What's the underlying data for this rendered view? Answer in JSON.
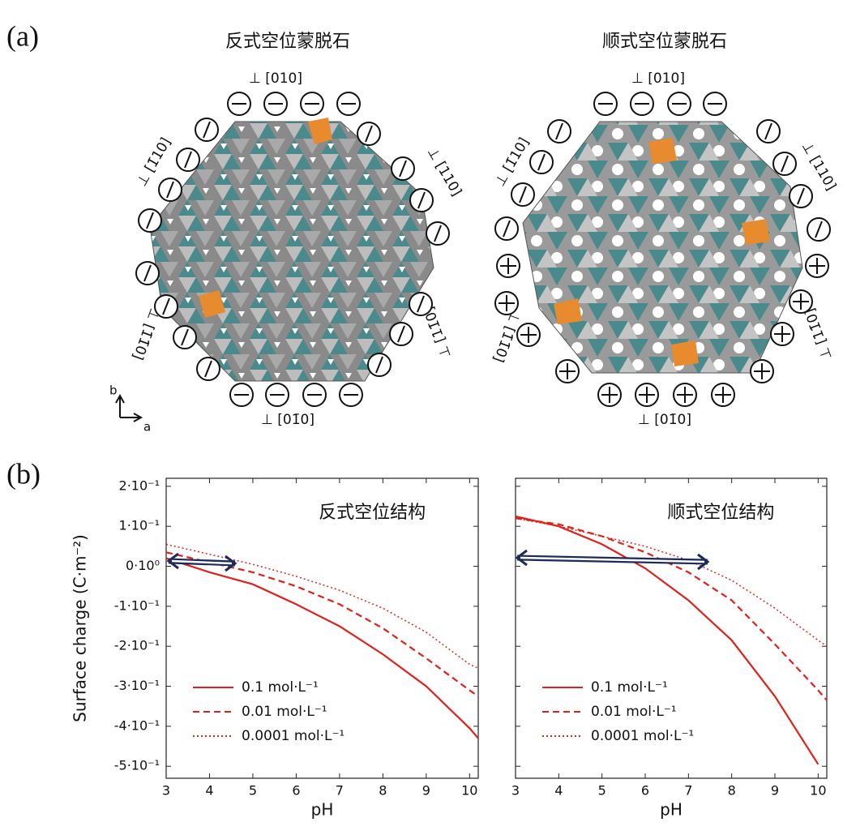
{
  "panel_a": {
    "label": "(a)",
    "titles": [
      "反式空位蒙脱石",
      "顺式空位蒙脱石"
    ],
    "left_directions": [
      "⊥ [010]",
      "⊥ [1̄10]",
      "⊥ [110]",
      "⊥ [1̄1̄0]",
      "⊥ [11̄0]",
      "⊥ [01̄0]"
    ],
    "right_directions": [
      "⊥ [010]",
      "⊥ [1̄10]",
      "⊥ [110]",
      "⊥ [1̄1̄0]",
      "⊥ [11̄0]",
      "⊥ [01̄0]"
    ],
    "axis_b": "b",
    "axis_a": "a"
  },
  "panel_b": {
    "label": "(b)"
  },
  "chart_data": [
    {
      "type": "line",
      "annotation": "反式空位结构",
      "xlabel": "pH",
      "ylabel": "Surface charge (C·m⁻²)",
      "x": [
        3,
        4,
        5,
        6,
        7,
        8,
        9,
        10,
        10.2
      ],
      "series": [
        {
          "name": "0.1 mol·L⁻¹",
          "color": "#e0201b",
          "linestyle": "solid",
          "values": [
            0.02,
            -0.015,
            -0.045,
            -0.095,
            -0.15,
            -0.22,
            -0.3,
            -0.405,
            -0.43
          ]
        },
        {
          "name": "0.01 mol·L⁻¹",
          "color": "#e0201b",
          "linestyle": "dashed",
          "values": [
            0.035,
            0.01,
            -0.015,
            -0.05,
            -0.095,
            -0.155,
            -0.23,
            -0.31,
            -0.325
          ]
        },
        {
          "name": "0.0001 mol·L⁻¹",
          "color": "#e0201b",
          "linestyle": "dotted",
          "values": [
            0.055,
            0.03,
            0.005,
            -0.025,
            -0.06,
            -0.105,
            -0.165,
            -0.245,
            -0.255
          ]
        }
      ],
      "xlim": [
        3,
        10.2
      ],
      "xticks": [
        3,
        4,
        5,
        6,
        7,
        8,
        9,
        10
      ],
      "ylim": [
        -0.53,
        0.22
      ],
      "yticks": [
        {
          "value": 0.2,
          "label": "2·10⁻¹"
        },
        {
          "value": 0.1,
          "label": "1·10⁻¹"
        },
        {
          "value": 0,
          "label": "0·10⁰"
        },
        {
          "value": -0.1,
          "label": "-1·10⁻¹"
        },
        {
          "value": -0.2,
          "label": "-2·10⁻¹"
        },
        {
          "value": -0.3,
          "label": "-3·10⁻¹"
        },
        {
          "value": -0.4,
          "label": "-4·10⁻¹"
        },
        {
          "value": -0.5,
          "label": "-5·10⁻¹"
        }
      ],
      "legend": "lower left"
    },
    {
      "type": "line",
      "annotation": "顺式空位结构",
      "xlabel": "pH",
      "x": [
        3,
        4,
        5,
        6,
        7,
        8,
        9,
        10,
        10.2
      ],
      "series": [
        {
          "name": "0.1 mol·L⁻¹",
          "color": "#e0201b",
          "linestyle": "solid",
          "values": [
            0.125,
            0.1,
            0.055,
            -0.005,
            -0.085,
            -0.185,
            -0.325,
            -0.495,
            null
          ]
        },
        {
          "name": "0.01 mol·L⁻¹",
          "color": "#e0201b",
          "linestyle": "dashed",
          "values": [
            0.12,
            0.105,
            0.075,
            0.035,
            -0.015,
            -0.085,
            -0.195,
            -0.31,
            -0.335
          ]
        },
        {
          "name": "0.0001 mol·L⁻¹",
          "color": "#e0201b",
          "linestyle": "dotted",
          "values": [
            0.12,
            0.1,
            0.075,
            0.05,
            0.015,
            -0.035,
            -0.105,
            -0.185,
            -0.2
          ]
        }
      ],
      "xlim": [
        3,
        10.2
      ],
      "xticks": [
        3,
        4,
        5,
        6,
        7,
        8,
        9,
        10
      ],
      "ylim": [
        -0.53,
        0.22
      ],
      "yticks": [
        0.2,
        0.1,
        0,
        -0.1,
        -0.2,
        -0.3,
        -0.4,
        -0.5
      ],
      "legend": "lower left"
    }
  ]
}
